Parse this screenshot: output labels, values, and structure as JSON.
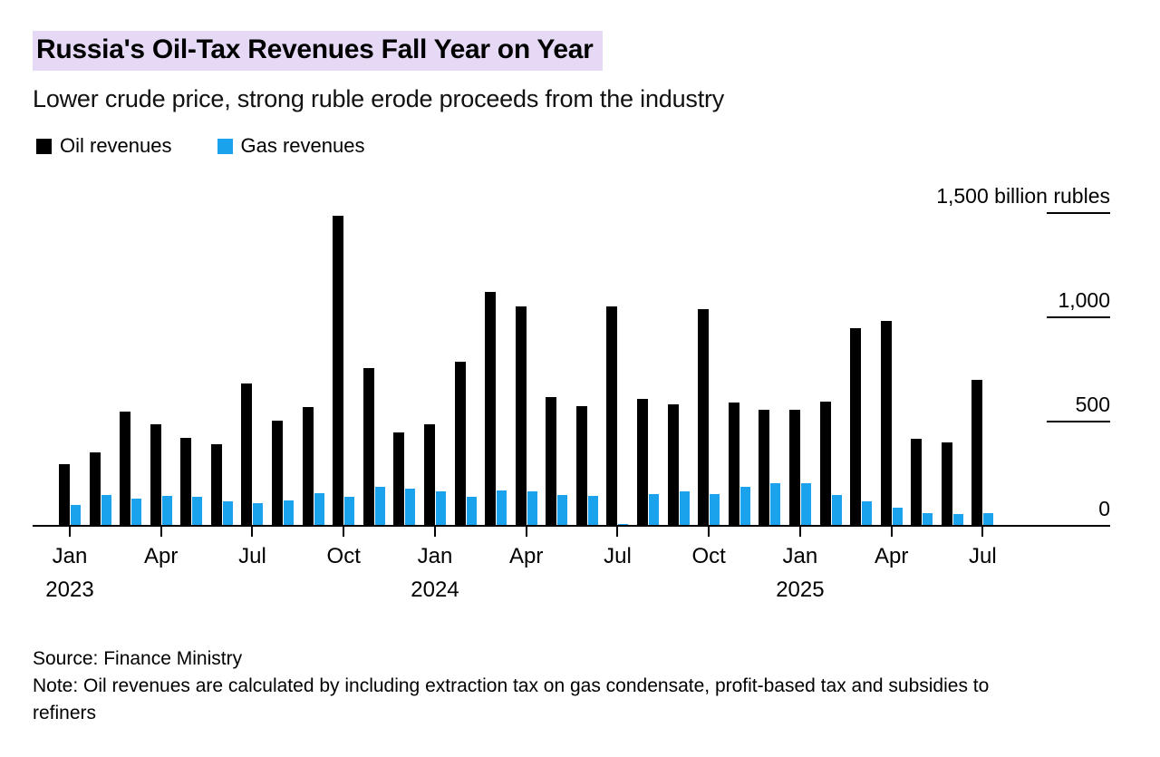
{
  "header": {
    "title": "Russia's Oil-Tax Revenues Fall Year on Year",
    "subtitle": "Lower crude price, strong ruble erode proceeds from the industry"
  },
  "legend": [
    {
      "label": "Oil revenues",
      "color": "#000000"
    },
    {
      "label": "Gas revenues",
      "color": "#1aa3ec"
    }
  ],
  "colors": {
    "title_highlight": "#e6d9f6",
    "oil": "#000000",
    "gas": "#1aa3ec",
    "axis": "#000000"
  },
  "footer": {
    "source": "Source: Finance Ministry",
    "note": "Note: Oil revenues are calculated by including extraction tax on gas condensate, profit-based tax and subsidies to refiners"
  },
  "chart_data": {
    "type": "bar",
    "title": "Russia's Oil-Tax Revenues Fall Year on Year",
    "subtitle": "Lower crude price, strong ruble erode proceeds from the industry",
    "ylabel": "billion rubles",
    "ylim": [
      0,
      1500
    ],
    "grid": false,
    "legend_position": "top-left",
    "yticks": [
      {
        "value": 0,
        "label": "0"
      },
      {
        "value": 500,
        "label": "500"
      },
      {
        "value": 1000,
        "label": "1,000"
      },
      {
        "value": 1500,
        "label": "1,500 billion rubles"
      }
    ],
    "categories": [
      "Jan 2023",
      "Feb 2023",
      "Mar 2023",
      "Apr 2023",
      "May 2023",
      "Jun 2023",
      "Jul 2023",
      "Aug 2023",
      "Sep 2023",
      "Oct 2023",
      "Nov 2023",
      "Dec 2023",
      "Jan 2024",
      "Feb 2024",
      "Mar 2024",
      "Apr 2024",
      "May 2024",
      "Jun 2024",
      "Jul 2024",
      "Aug 2024",
      "Sep 2024",
      "Oct 2024",
      "Nov 2024",
      "Dec 2024",
      "Jan 2025",
      "Feb 2025",
      "Mar 2025",
      "Apr 2025",
      "May 2025",
      "Jun 2025",
      "Jul 2025"
    ],
    "series": [
      {
        "name": "Oil revenues",
        "color": "#000000",
        "values": [
          300,
          355,
          550,
          490,
          425,
          395,
          685,
          510,
          575,
          1490,
          760,
          450,
          490,
          790,
          1125,
          1055,
          620,
          580,
          1055,
          615,
          585,
          1045,
          595,
          560,
          560,
          600,
          950,
          985,
          420,
          405,
          705
        ]
      },
      {
        "name": "Gas revenues",
        "color": "#1aa3ec",
        "values": [
          105,
          150,
          135,
          148,
          143,
          122,
          113,
          126,
          160,
          143,
          190,
          183,
          170,
          145,
          175,
          170,
          152,
          148,
          15,
          155,
          170,
          155,
          190,
          210,
          210,
          150,
          120,
          90,
          65,
          60,
          65
        ]
      }
    ]
  }
}
